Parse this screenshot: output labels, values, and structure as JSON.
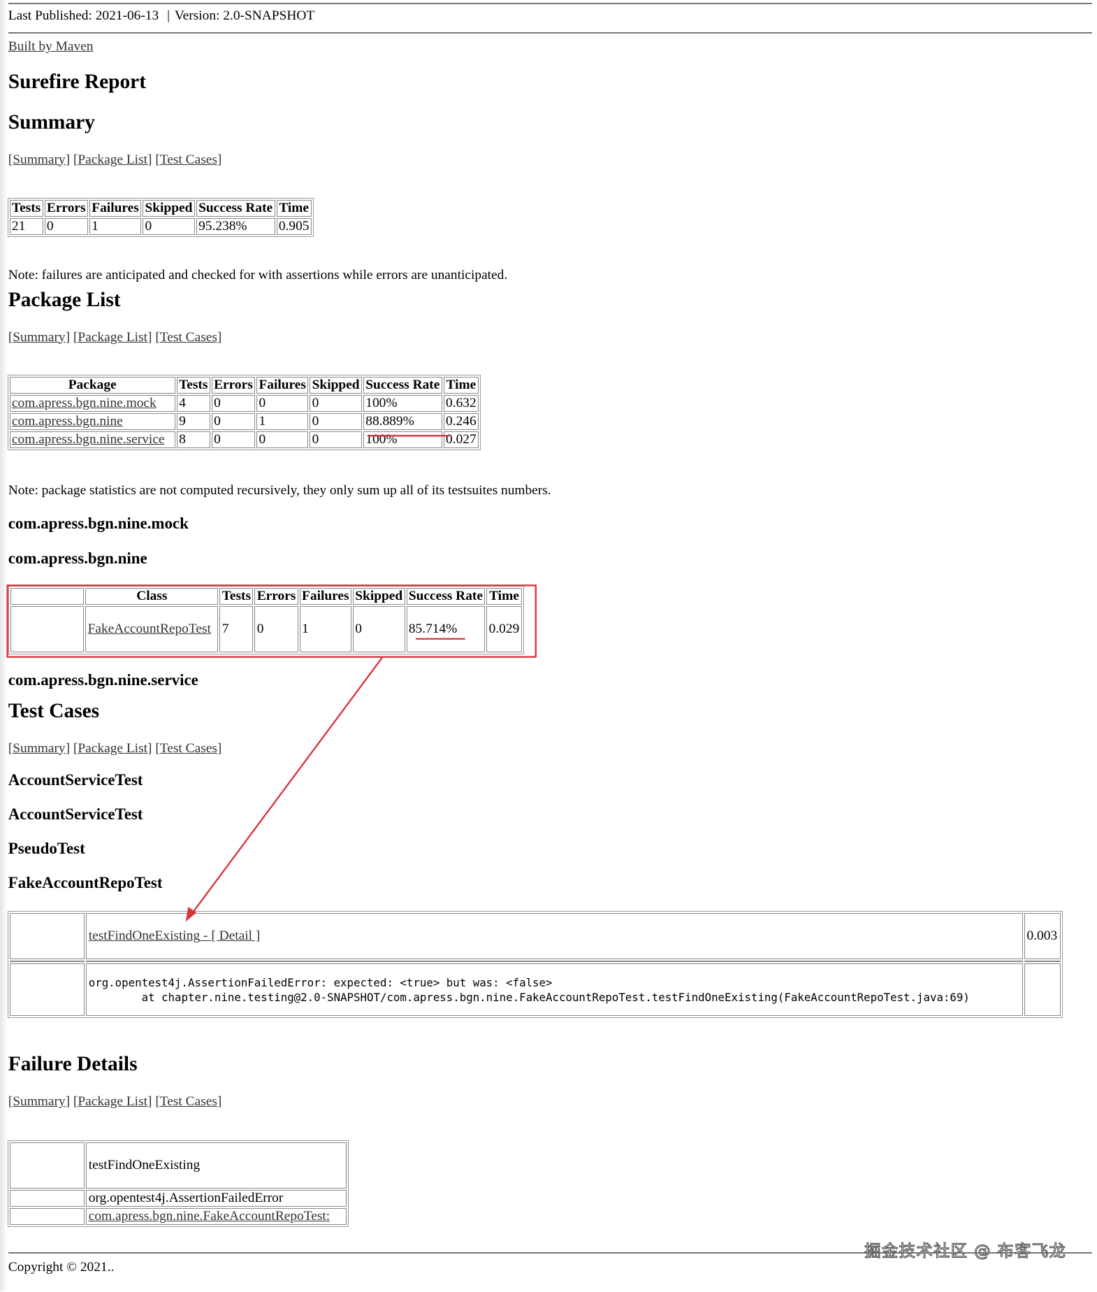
{
  "header": {
    "published": "Last Published: 2021-06-13",
    "separator": "|",
    "version": "Version: 2.0-SNAPSHOT",
    "built_by": "Built by Maven"
  },
  "title": "Surefire Report",
  "nav": {
    "summary": "Summary",
    "package_list": "Package List",
    "test_cases": "Test Cases"
  },
  "summary": {
    "heading": "Summary",
    "columns": [
      "Tests",
      "Errors",
      "Failures",
      "Skipped",
      "Success Rate",
      "Time"
    ],
    "row": [
      "21",
      "0",
      "1",
      "0",
      "95.238%",
      "0.905"
    ],
    "note": "Note: failures are anticipated and checked for with assertions while errors are unanticipated."
  },
  "package_list": {
    "heading": "Package List",
    "columns": [
      "Package",
      "Tests",
      "Errors",
      "Failures",
      "Skipped",
      "Success Rate",
      "Time"
    ],
    "rows": [
      [
        "com.apress.bgn.nine.mock",
        "4",
        "0",
        "0",
        "0",
        "100%",
        "0.632"
      ],
      [
        "com.apress.bgn.nine",
        "9",
        "0",
        "1",
        "0",
        "88.889%",
        "0.246"
      ],
      [
        "com.apress.bgn.nine.service",
        "8",
        "0",
        "0",
        "0",
        "100%",
        "0.027"
      ]
    ],
    "note": "Note: package statistics are not computed recursively, they only sum up all of its testsuites numbers."
  },
  "packages": {
    "mock": "com.apress.bgn.nine.mock",
    "nine": "com.apress.bgn.nine",
    "service": "com.apress.bgn.nine.service",
    "class_table": {
      "columns": [
        "Class",
        "Tests",
        "Errors",
        "Failures",
        "Skipped",
        "Success Rate",
        "Time"
      ],
      "row": [
        "FakeAccountRepoTest",
        "7",
        "0",
        "1",
        "0",
        "85.714%",
        "0.029"
      ]
    }
  },
  "test_cases": {
    "heading": "Test Cases",
    "classes": [
      "AccountServiceTest",
      "AccountServiceTest",
      "PseudoTest",
      "FakeAccountRepoTest"
    ],
    "case": {
      "name": "testFindOneExisting",
      "detail_link": " - [ Detail ]",
      "time": "0.003"
    },
    "trace": "org.opentest4j.AssertionFailedError: expected: <true> but was: <false>\n\tat chapter.nine.testing@2.0-SNAPSHOT/com.apress.bgn.nine.FakeAccountRepoTest.testFindOneExisting(FakeAccountRepoTest.java:69)"
  },
  "failure_details": {
    "heading": "Failure Details",
    "name": "testFindOneExisting",
    "error": "org.opentest4j.AssertionFailedError",
    "link": "com.apress.bgn.nine.FakeAccountRepoTest:"
  },
  "footer": {
    "copyright": "Copyright © 2021.."
  },
  "watermark": "掘金技术社区 @ 布客飞龙",
  "colors": {
    "annotation": "#d9333a",
    "link": "#333333",
    "rule": "#777777"
  }
}
